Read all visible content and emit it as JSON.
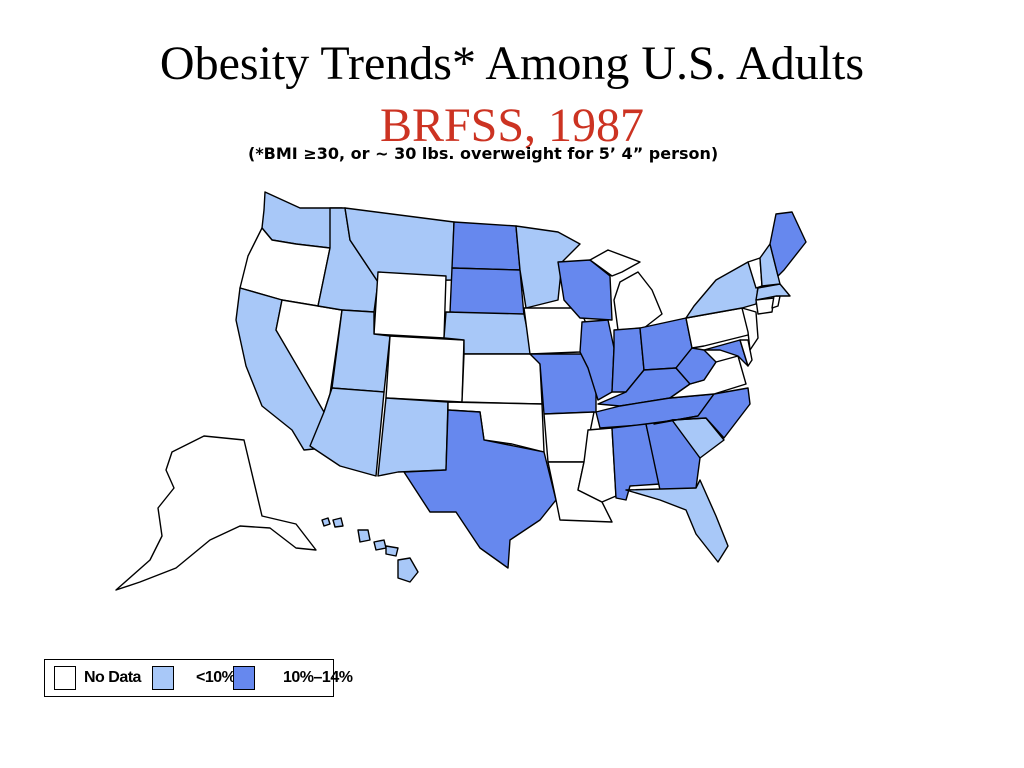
{
  "title": {
    "line1": "Obesity Trends* Among U.S. Adults",
    "line2": "BRFSS, 1987",
    "line2_color": "#cc3322"
  },
  "note": "(*BMI ≥30, or ~ 30 lbs. overweight for 5’ 4” person)",
  "colors": {
    "no_data": "#ffffff",
    "lt10": "#a8c8f8",
    "10to14": "#6688ee"
  },
  "legend": [
    {
      "key": "no_data",
      "label": "No Data"
    },
    {
      "key": "lt10",
      "label": "<10%"
    },
    {
      "key": "10to14",
      "label": "10%–14%"
    }
  ],
  "states": {
    "WA": "lt10",
    "OR": "no_data",
    "CA": "lt10",
    "NV": "no_data",
    "ID": "lt10",
    "MT": "lt10",
    "WY": "no_data",
    "UT": "lt10",
    "AZ": "lt10",
    "CO": "no_data",
    "NM": "lt10",
    "ND": "10to14",
    "SD": "10to14",
    "NE": "lt10",
    "KS": "no_data",
    "OK": "no_data",
    "TX": "10to14",
    "MN": "lt10",
    "IA": "no_data",
    "MO": "10to14",
    "AR": "no_data",
    "LA": "no_data",
    "WI": "10to14",
    "IL": "10to14",
    "MI": "no_data",
    "IN": "10to14",
    "OH": "10to14",
    "KY": "10to14",
    "TN": "10to14",
    "MS": "no_data",
    "AL": "10to14",
    "GA": "10to14",
    "FL": "lt10",
    "SC": "lt10",
    "NC": "10to14",
    "VA": "no_data",
    "WV": "10to14",
    "MD": "10to14",
    "DE": "no_data",
    "NJ": "no_data",
    "PA": "no_data",
    "NY": "lt10",
    "CT": "no_data",
    "RI": "no_data",
    "MA": "lt10",
    "VT": "no_data",
    "NH": "lt10",
    "ME": "10to14",
    "AK": "no_data",
    "HI": "lt10"
  }
}
